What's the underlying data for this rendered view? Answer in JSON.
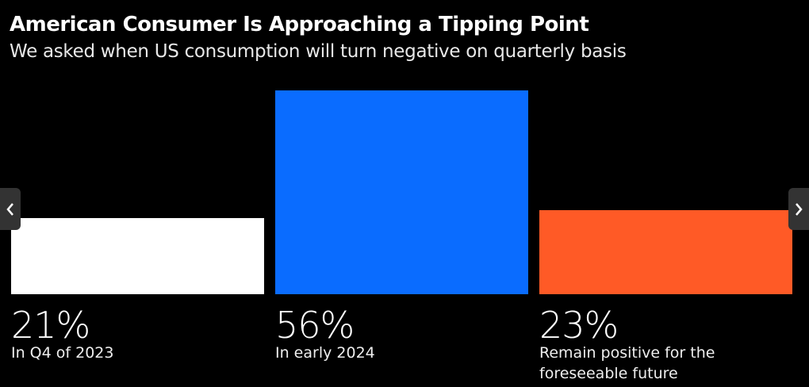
{
  "header": {
    "title": "American Consumer Is Approaching a Tipping Point",
    "subtitle": "We asked when US consumption will turn negative on quarterly basis"
  },
  "chart_data": {
    "type": "bar",
    "title": "American Consumer Is Approaching a Tipping Point",
    "subtitle": "We asked when US consumption will turn negative on quarterly basis",
    "categories": [
      "In Q4 of 2023",
      "In early 2024",
      "Remain positive for the foreseeable future"
    ],
    "values": [
      21,
      56,
      23
    ],
    "labels": [
      "21%",
      "56%",
      "23%"
    ],
    "colors": [
      "#ffffff",
      "#0a6cff",
      "#ff5a26"
    ],
    "unit": "%",
    "grid": false
  },
  "nav": {
    "prev_icon": "chevron-left-icon",
    "next_icon": "chevron-right-icon"
  }
}
